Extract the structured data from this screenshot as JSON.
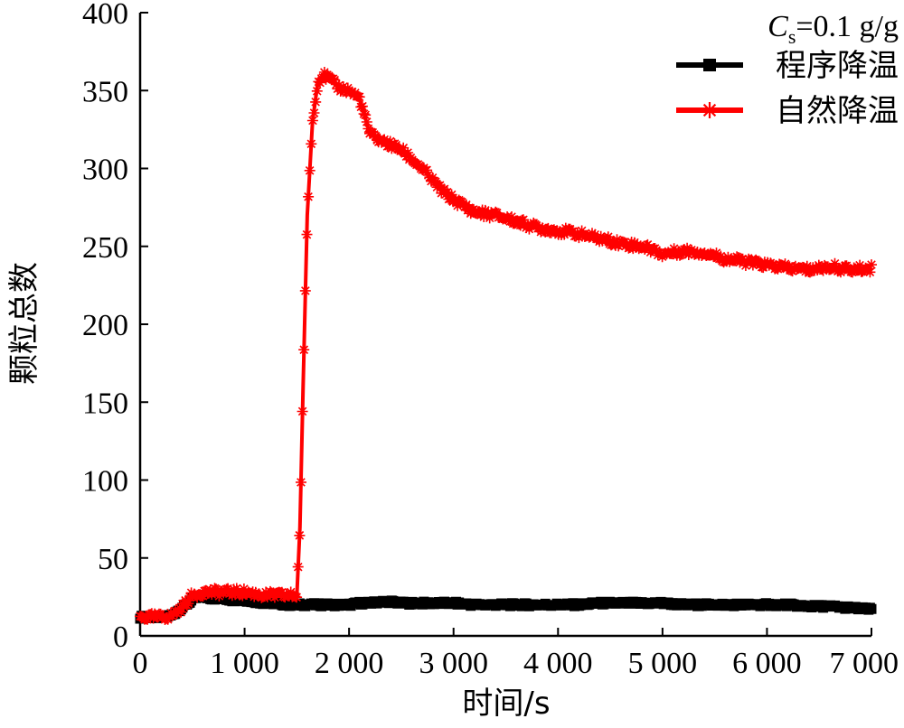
{
  "chart_data": {
    "type": "line",
    "xlabel": "时间/s",
    "ylabel": "颗粒总数",
    "xlim": [
      0,
      7000
    ],
    "ylim": [
      0,
      400
    ],
    "x_ticks": [
      0,
      1000,
      2000,
      3000,
      4000,
      5000,
      6000,
      7000
    ],
    "x_tick_labels": [
      "0",
      "1 000",
      "2 000",
      "3 000",
      "4 000",
      "5 000",
      "6 000",
      "7 000"
    ],
    "y_ticks": [
      0,
      50,
      100,
      150,
      200,
      250,
      300,
      350,
      400
    ],
    "y_tick_labels": [
      "0",
      "50",
      "100",
      "150",
      "200",
      "250",
      "300",
      "350",
      "400"
    ],
    "grid": false,
    "legend_position": "top-right",
    "annotation": {
      "symbol": "C",
      "subscript": "s",
      "text": "=0.1 g/g"
    },
    "series": [
      {
        "name": "程序降温",
        "color": "#000000",
        "marker": "square",
        "x": [
          0,
          100,
          200,
          300,
          400,
          500,
          550,
          600,
          700,
          800,
          900,
          1000,
          1100,
          1200,
          1300,
          1400,
          1500,
          1600,
          1700,
          1800,
          1900,
          2000,
          2100,
          2200,
          2300,
          2400,
          2500,
          2600,
          2800,
          3000,
          3200,
          3400,
          3600,
          3800,
          4000,
          4200,
          4400,
          4600,
          4800,
          5000,
          5200,
          5400,
          5600,
          5800,
          6000,
          6200,
          6400,
          6600,
          6800,
          7000
        ],
        "y": [
          12,
          12,
          12,
          13,
          18,
          23,
          25,
          25,
          24,
          24,
          23,
          23,
          22,
          21,
          21,
          20,
          20,
          20,
          20,
          20,
          20,
          20,
          21,
          21,
          22,
          22,
          21,
          21,
          21,
          21,
          20,
          20,
          20,
          20,
          20,
          20,
          21,
          21,
          21,
          21,
          20,
          20,
          20,
          20,
          20,
          20,
          19,
          19,
          18,
          17
        ]
      },
      {
        "name": "自然降温",
        "color": "#ff0000",
        "marker": "star",
        "x": [
          0,
          100,
          200,
          300,
          400,
          500,
          550,
          600,
          700,
          800,
          900,
          1000,
          1100,
          1200,
          1300,
          1400,
          1500,
          1530,
          1560,
          1600,
          1650,
          1700,
          1750,
          1800,
          1850,
          1900,
          2000,
          2100,
          2200,
          2300,
          2400,
          2500,
          2600,
          2700,
          2800,
          2900,
          3000,
          3200,
          3400,
          3600,
          3800,
          4000,
          4200,
          4400,
          4600,
          4800,
          4900,
          5000,
          5200,
          5400,
          5600,
          5800,
          6000,
          6200,
          6400,
          6600,
          6700,
          6800,
          7000
        ],
        "y": [
          12,
          12,
          12,
          13,
          18,
          26,
          27,
          28,
          28,
          28,
          28,
          28,
          27,
          26,
          26,
          26,
          26,
          70,
          160,
          270,
          330,
          355,
          360,
          358,
          355,
          352,
          350,
          345,
          322,
          318,
          315,
          312,
          306,
          300,
          292,
          285,
          280,
          272,
          270,
          266,
          262,
          260,
          258,
          255,
          252,
          250,
          248,
          245,
          247,
          246,
          242,
          240,
          238,
          236,
          235,
          237,
          236,
          235,
          236
        ]
      }
    ]
  }
}
